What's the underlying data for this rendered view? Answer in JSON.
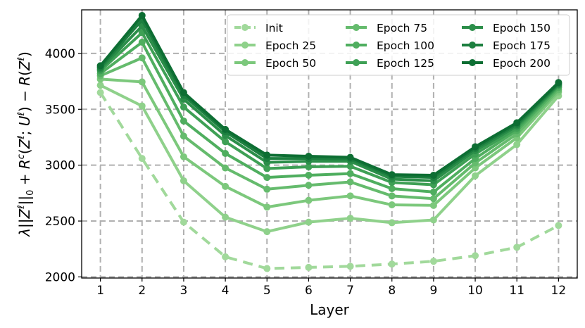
{
  "chart_data": {
    "type": "line",
    "xlabel": "Layer",
    "ylabel": "λ||Z^ℓ||_0 + R^c(Z^ℓ; U^ℓ) − R(Z^ℓ)",
    "ylabel_parts": {
      "lambda": "λ",
      "bars_open": "||",
      "z1": "Z",
      "sup1": "ℓ",
      "bars_close": "||",
      "sub0": "0",
      "plus": " + ",
      "r1": "R",
      "supc": "c",
      "paren_open": "(",
      "z2": "Z",
      "sup2": "ℓ",
      "semi": "; ",
      "u": "U",
      "sup3": "ℓ",
      "paren_close": ")",
      "minus": " − ",
      "r2": "R",
      "paren_open2": "(",
      "z3": "Z",
      "sup4": "ℓ",
      "paren_close2": ")"
    },
    "x": [
      1,
      2,
      3,
      4,
      5,
      6,
      7,
      8,
      9,
      10,
      11,
      12
    ],
    "xlim": [
      0.55,
      12.45
    ],
    "ylim": [
      1990,
      4390
    ],
    "yticks": [
      2000,
      2500,
      3000,
      3500,
      4000
    ],
    "grid": true,
    "legend_position": "top-right",
    "series": [
      {
        "name": "Init",
        "color": "#a1d99b",
        "dashed": true,
        "values": [
          3650,
          3060,
          2490,
          2180,
          2075,
          2085,
          2095,
          2115,
          2140,
          2190,
          2265,
          2460
        ]
      },
      {
        "name": "Epoch 25",
        "color": "#8fd18b",
        "dashed": false,
        "values": [
          3715,
          3530,
          2860,
          2535,
          2405,
          2490,
          2525,
          2485,
          2510,
          2905,
          3185,
          3620
        ]
      },
      {
        "name": "Epoch 50",
        "color": "#7cc87c",
        "dashed": false,
        "values": [
          3770,
          3745,
          3075,
          2810,
          2625,
          2685,
          2725,
          2645,
          2640,
          2975,
          3245,
          3655
        ]
      },
      {
        "name": "Epoch 75",
        "color": "#65bb6d",
        "dashed": false,
        "values": [
          3800,
          3960,
          3260,
          2975,
          2785,
          2820,
          2850,
          2725,
          2700,
          3020,
          3280,
          3675
        ]
      },
      {
        "name": "Epoch 100",
        "color": "#4fae5f",
        "dashed": false,
        "values": [
          3820,
          4100,
          3395,
          3105,
          2890,
          2910,
          2925,
          2790,
          2760,
          3060,
          3310,
          3695
        ]
      },
      {
        "name": "Epoch 125",
        "color": "#3ea055",
        "dashed": false,
        "values": [
          3845,
          4185,
          3520,
          3210,
          2970,
          2985,
          2990,
          2845,
          2825,
          3100,
          3330,
          3710
        ]
      },
      {
        "name": "Epoch 150",
        "color": "#2b8e49",
        "dashed": false,
        "values": [
          3860,
          4245,
          3590,
          3265,
          3025,
          3035,
          3035,
          2875,
          2860,
          3130,
          3350,
          3720
        ]
      },
      {
        "name": "Epoch 175",
        "color": "#1c7f3f",
        "dashed": false,
        "values": [
          3875,
          4300,
          3625,
          3300,
          3060,
          3060,
          3055,
          2900,
          2890,
          3150,
          3365,
          3730
        ]
      },
      {
        "name": "Epoch 200",
        "color": "#0d6e33",
        "dashed": false,
        "values": [
          3890,
          4340,
          3650,
          3320,
          3090,
          3080,
          3070,
          2915,
          2910,
          3165,
          3380,
          3740
        ]
      }
    ]
  }
}
